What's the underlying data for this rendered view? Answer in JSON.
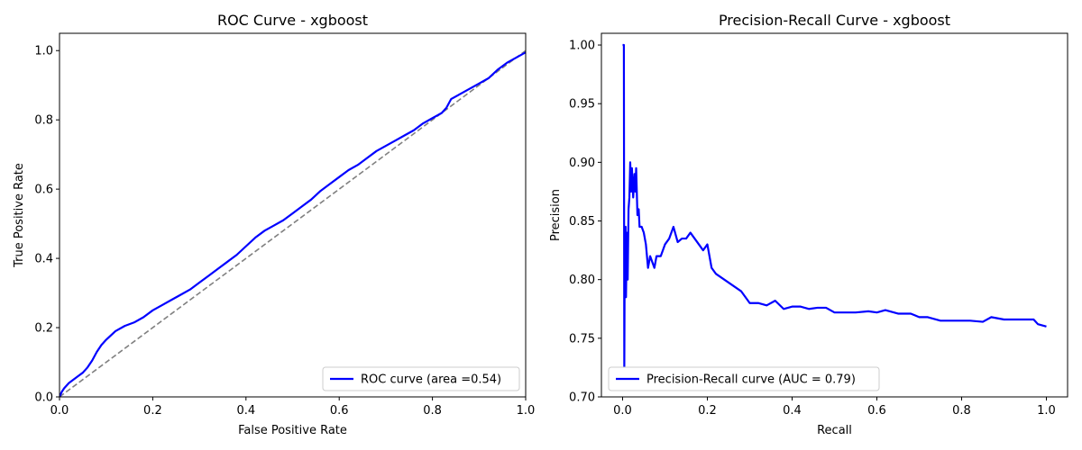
{
  "chart_data": [
    {
      "type": "line",
      "title": "ROC Curve - xgboost",
      "xlabel": "False Positive Rate",
      "ylabel": "True Positive Rate",
      "xlim": [
        0.0,
        1.0
      ],
      "ylim": [
        0.0,
        1.05
      ],
      "xticks": [
        0.0,
        0.2,
        0.4,
        0.6,
        0.8,
        1.0
      ],
      "yticks": [
        0.0,
        0.2,
        0.4,
        0.6,
        0.8,
        1.0
      ],
      "xtick_labels": [
        "0.0",
        "0.2",
        "0.4",
        "0.6",
        "0.8",
        "1.0"
      ],
      "ytick_labels": [
        "0.0",
        "0.2",
        "0.4",
        "0.6",
        "0.8",
        "1.0"
      ],
      "legend_position": "lower-right",
      "series": [
        {
          "name": "ROC curve (area =0.54)",
          "color": "#0000ff",
          "x": [
            0.0,
            0.005,
            0.01,
            0.02,
            0.03,
            0.04,
            0.05,
            0.06,
            0.07,
            0.08,
            0.09,
            0.1,
            0.12,
            0.14,
            0.16,
            0.18,
            0.2,
            0.22,
            0.24,
            0.26,
            0.28,
            0.3,
            0.32,
            0.34,
            0.36,
            0.38,
            0.4,
            0.42,
            0.44,
            0.46,
            0.48,
            0.5,
            0.52,
            0.54,
            0.56,
            0.58,
            0.6,
            0.62,
            0.64,
            0.66,
            0.68,
            0.7,
            0.72,
            0.74,
            0.76,
            0.78,
            0.8,
            0.82,
            0.83,
            0.84,
            0.86,
            0.88,
            0.9,
            0.92,
            0.94,
            0.96,
            0.98,
            1.0
          ],
          "y": [
            0.0,
            0.015,
            0.025,
            0.04,
            0.05,
            0.06,
            0.07,
            0.085,
            0.105,
            0.13,
            0.15,
            0.165,
            0.19,
            0.205,
            0.215,
            0.23,
            0.25,
            0.265,
            0.28,
            0.295,
            0.31,
            0.33,
            0.35,
            0.37,
            0.39,
            0.41,
            0.435,
            0.46,
            0.48,
            0.495,
            0.51,
            0.53,
            0.55,
            0.57,
            0.595,
            0.615,
            0.635,
            0.655,
            0.67,
            0.69,
            0.71,
            0.725,
            0.74,
            0.755,
            0.77,
            0.79,
            0.805,
            0.82,
            0.835,
            0.86,
            0.875,
            0.89,
            0.905,
            0.92,
            0.945,
            0.965,
            0.98,
            0.995
          ]
        },
        {
          "name": "",
          "color": "#808080",
          "dashed": true,
          "x": [
            0.0,
            1.0
          ],
          "y": [
            0.0,
            1.0
          ]
        }
      ]
    },
    {
      "type": "line",
      "title": "Precision-Recall Curve - xgboost",
      "xlabel": "Recall",
      "ylabel": "Precision",
      "xlim": [
        -0.05,
        1.05
      ],
      "ylim": [
        0.7,
        1.01
      ],
      "xticks": [
        0.0,
        0.2,
        0.4,
        0.6,
        0.8,
        1.0
      ],
      "yticks": [
        0.7,
        0.75,
        0.8,
        0.85,
        0.9,
        0.95,
        1.0
      ],
      "xtick_labels": [
        "0.0",
        "0.2",
        "0.4",
        "0.6",
        "0.8",
        "1.0"
      ],
      "ytick_labels": [
        "0.70",
        "0.75",
        "0.80",
        "0.85",
        "0.90",
        "0.95",
        "1.00"
      ],
      "legend_position": "lower-left",
      "series": [
        {
          "name": "Precision-Recall curve (AUC = 0.79)",
          "color": "#0000ff",
          "x": [
            0.0,
            0.003,
            0.004,
            0.005,
            0.006,
            0.007,
            0.008,
            0.01,
            0.012,
            0.014,
            0.016,
            0.018,
            0.02,
            0.022,
            0.025,
            0.028,
            0.03,
            0.032,
            0.035,
            0.038,
            0.04,
            0.045,
            0.05,
            0.055,
            0.06,
            0.065,
            0.07,
            0.075,
            0.08,
            0.09,
            0.1,
            0.11,
            0.12,
            0.13,
            0.14,
            0.15,
            0.16,
            0.17,
            0.18,
            0.19,
            0.2,
            0.21,
            0.22,
            0.24,
            0.26,
            0.28,
            0.3,
            0.32,
            0.34,
            0.36,
            0.38,
            0.4,
            0.42,
            0.44,
            0.46,
            0.48,
            0.5,
            0.52,
            0.55,
            0.58,
            0.6,
            0.62,
            0.65,
            0.68,
            0.7,
            0.72,
            0.75,
            0.78,
            0.8,
            0.82,
            0.85,
            0.87,
            0.9,
            0.92,
            0.95,
            0.97,
            0.98,
            1.0
          ],
          "y": [
            1.0,
            1.0,
            0.725,
            0.82,
            0.79,
            0.845,
            0.785,
            0.84,
            0.8,
            0.86,
            0.87,
            0.9,
            0.875,
            0.895,
            0.87,
            0.89,
            0.875,
            0.895,
            0.855,
            0.86,
            0.845,
            0.845,
            0.84,
            0.83,
            0.81,
            0.82,
            0.815,
            0.81,
            0.82,
            0.82,
            0.83,
            0.835,
            0.845,
            0.832,
            0.835,
            0.835,
            0.84,
            0.835,
            0.83,
            0.825,
            0.83,
            0.81,
            0.805,
            0.8,
            0.795,
            0.79,
            0.78,
            0.78,
            0.778,
            0.782,
            0.775,
            0.777,
            0.777,
            0.775,
            0.776,
            0.776,
            0.772,
            0.772,
            0.772,
            0.773,
            0.772,
            0.774,
            0.771,
            0.771,
            0.768,
            0.768,
            0.765,
            0.765,
            0.765,
            0.765,
            0.764,
            0.768,
            0.766,
            0.766,
            0.766,
            0.766,
            0.762,
            0.76
          ]
        }
      ]
    }
  ]
}
